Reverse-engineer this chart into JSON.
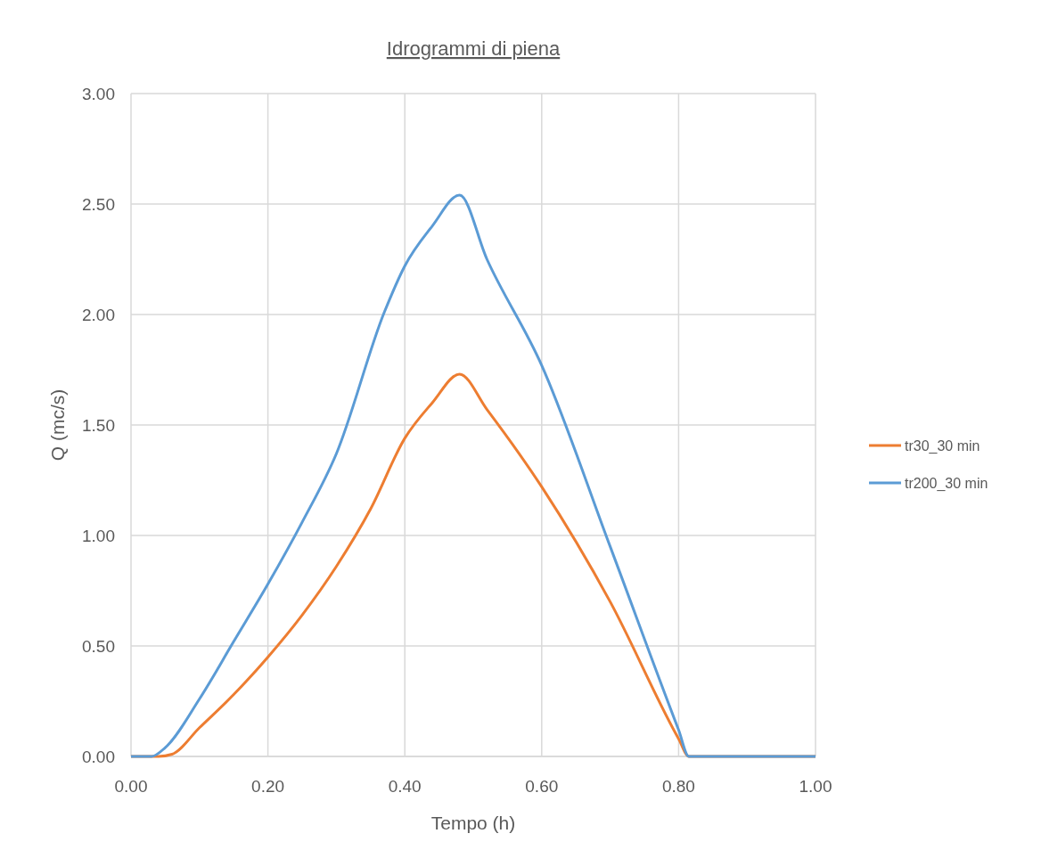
{
  "chart_data": {
    "type": "line",
    "title": "Idrogrammi di piena",
    "xlabel": "Tempo (h)",
    "ylabel": "Q (mc/s)",
    "xlim": [
      0,
      1
    ],
    "xticks": [
      {
        "value": 0,
        "label": "0.00"
      },
      {
        "value": 0.2,
        "label": "0.20"
      },
      {
        "value": 0.4,
        "label": "0.40"
      },
      {
        "value": 0.6,
        "label": "0.60"
      },
      {
        "value": 0.8,
        "label": "0.80"
      },
      {
        "value": 1,
        "label": "1.00"
      }
    ],
    "ylim": [
      0,
      3
    ],
    "yticks": [
      {
        "value": 0,
        "label": "0.00"
      },
      {
        "value": 0.5,
        "label": "0.50"
      },
      {
        "value": 1,
        "label": "1.00"
      },
      {
        "value": 1.5,
        "label": "1.50"
      },
      {
        "value": 2,
        "label": "2.00"
      },
      {
        "value": 2.5,
        "label": "2.50"
      },
      {
        "value": 3,
        "label": "3.00"
      }
    ],
    "grid": true,
    "legend": "right",
    "marker": "none",
    "line_style": "solid",
    "series": [
      {
        "name": "tr30_30 min",
        "color": "#ed7d31",
        "x": [
          0,
          0.04,
          0.06,
          0.1,
          0.15,
          0.2,
          0.25,
          0.3,
          0.35,
          0.4,
          0.44,
          0.48,
          0.52,
          0.6,
          0.7,
          0.8,
          0.815,
          1
        ],
        "values": [
          0,
          0,
          0.01,
          0.13,
          0.28,
          0.45,
          0.64,
          0.86,
          1.12,
          1.44,
          1.6,
          1.73,
          1.57,
          1.22,
          0.7,
          0.08,
          0,
          0
        ]
      },
      {
        "name": "tr200_30 min",
        "color": "#5b9bd5",
        "x": [
          0,
          0.03,
          0.05,
          0.1,
          0.15,
          0.2,
          0.25,
          0.3,
          0.37,
          0.4,
          0.44,
          0.48,
          0.52,
          0.6,
          0.7,
          0.8,
          0.815,
          1
        ],
        "values": [
          0,
          0,
          0.04,
          0.26,
          0.52,
          0.78,
          1.06,
          1.37,
          2.01,
          2.22,
          2.4,
          2.54,
          2.25,
          1.77,
          0.95,
          0.12,
          0,
          0
        ]
      }
    ]
  }
}
